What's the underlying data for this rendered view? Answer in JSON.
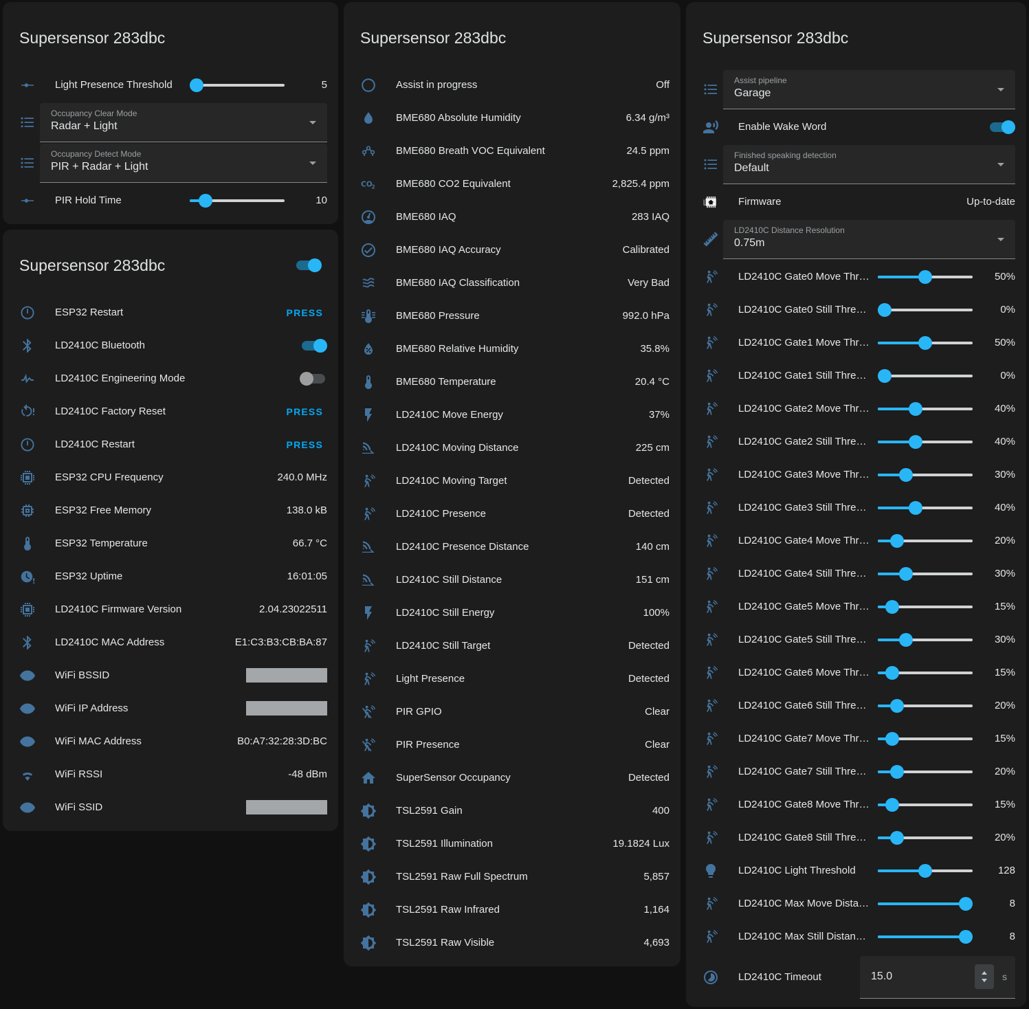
{
  "colors": {
    "page_bg": "#111112",
    "card_bg": "#1d1d1d",
    "icon_blue": "#44739e",
    "accent_blue": "#29b6f6",
    "press_blue": "#03a9f4",
    "inactive_track": "#d0d2d4",
    "redacted_gray": "#a4a7a9"
  },
  "columns": [
    {
      "cards": [
        {
          "title": "Supersensor 283dbc",
          "rows": [
            {
              "type": "slider",
              "icon": "tune",
              "label": "Light Presence Threshold",
              "value": "5",
              "fill": 4
            },
            {
              "type": "select",
              "icon": "list",
              "label": "Occupancy Clear Mode",
              "value": "Radar + Light"
            },
            {
              "type": "select",
              "icon": "list",
              "label": "Occupancy Detect Mode",
              "value": "PIR + Radar + Light"
            },
            {
              "type": "slider",
              "icon": "tune",
              "label": "PIR Hold Time",
              "value": "10",
              "fill": 17
            }
          ]
        },
        {
          "title": "Supersensor 283dbc",
          "header_toggle": {
            "on": true
          },
          "rows": [
            {
              "type": "press",
              "icon": "power",
              "label": "ESP32 Restart",
              "action": "PRESS"
            },
            {
              "type": "toggle",
              "icon": "bluetooth",
              "label": "LD2410C Bluetooth",
              "on": true
            },
            {
              "type": "toggle",
              "icon": "pulse",
              "label": "LD2410C Engineering Mode",
              "on": false
            },
            {
              "type": "press",
              "icon": "restart-alert",
              "label": "LD2410C Factory Reset",
              "action": "PRESS"
            },
            {
              "type": "press",
              "icon": "power",
              "label": "LD2410C Restart",
              "action": "PRESS"
            },
            {
              "type": "value",
              "icon": "chip",
              "label": "ESP32 CPU Frequency",
              "value": "240.0 MHz"
            },
            {
              "type": "value",
              "icon": "memory",
              "label": "ESP32 Free Memory",
              "value": "138.0 kB"
            },
            {
              "type": "value",
              "icon": "thermometer",
              "label": "ESP32 Temperature",
              "value": "66.7 °C"
            },
            {
              "type": "value",
              "icon": "clock-alert",
              "label": "ESP32 Uptime",
              "value": "16:01:05"
            },
            {
              "type": "value",
              "icon": "chip",
              "label": "LD2410C Firmware Version",
              "value": "2.04.23022511"
            },
            {
              "type": "value",
              "icon": "bluetooth",
              "label": "LD2410C MAC Address",
              "value": "E1:C3:B3:CB:BA:87"
            },
            {
              "type": "redacted",
              "icon": "eye",
              "label": "WiFi BSSID"
            },
            {
              "type": "redacted",
              "icon": "eye",
              "label": "WiFi IP Address"
            },
            {
              "type": "value",
              "icon": "eye",
              "label": "WiFi MAC Address",
              "value": "B0:A7:32:28:3D:BC"
            },
            {
              "type": "value",
              "icon": "wifi",
              "label": "WiFi RSSI",
              "value": "-48 dBm"
            },
            {
              "type": "redacted",
              "icon": "eye",
              "label": "WiFi SSID"
            }
          ]
        }
      ]
    },
    {
      "cards": [
        {
          "title": "Supersensor 283dbc",
          "rows": [
            {
              "type": "value",
              "icon": "circle-outline",
              "label": "Assist in progress",
              "value": "Off"
            },
            {
              "type": "value",
              "icon": "water",
              "label": "BME680 Absolute Humidity",
              "value": "6.34 g/m³"
            },
            {
              "type": "value",
              "icon": "molecule",
              "label": "BME680 Breath VOC Equivalent",
              "value": "24.5 ppm"
            },
            {
              "type": "value",
              "icon": "co2",
              "label": "BME680 CO2 Equivalent",
              "value": "2,825.4 ppm"
            },
            {
              "type": "value",
              "icon": "gauge",
              "label": "BME680 IAQ",
              "value": "283 IAQ"
            },
            {
              "type": "value",
              "icon": "check-circle",
              "label": "BME680 IAQ Accuracy",
              "value": "Calibrated"
            },
            {
              "type": "value",
              "icon": "air-filter",
              "label": "BME680 IAQ Classification",
              "value": "Very Bad"
            },
            {
              "type": "value",
              "icon": "thermometer-lines",
              "label": "BME680 Pressure",
              "value": "992.0 hPa"
            },
            {
              "type": "value",
              "icon": "water-percent",
              "label": "BME680 Relative Humidity",
              "value": "35.8%"
            },
            {
              "type": "value",
              "icon": "thermometer",
              "label": "BME680 Temperature",
              "value": "20.4 °C"
            },
            {
              "type": "value",
              "icon": "flash",
              "label": "LD2410C Move Energy",
              "value": "37%"
            },
            {
              "type": "value",
              "icon": "signal-distance",
              "label": "LD2410C Moving Distance",
              "value": "225 cm"
            },
            {
              "type": "value",
              "icon": "motion-sensor",
              "label": "LD2410C Moving Target",
              "value": "Detected"
            },
            {
              "type": "value",
              "icon": "motion-sensor",
              "label": "LD2410C Presence",
              "value": "Detected"
            },
            {
              "type": "value",
              "icon": "signal-distance",
              "label": "LD2410C Presence Distance",
              "value": "140 cm"
            },
            {
              "type": "value",
              "icon": "signal-distance",
              "label": "LD2410C Still Distance",
              "value": "151 cm"
            },
            {
              "type": "value",
              "icon": "flash",
              "label": "LD2410C Still Energy",
              "value": "100%"
            },
            {
              "type": "value",
              "icon": "motion-sensor",
              "label": "LD2410C Still Target",
              "value": "Detected"
            },
            {
              "type": "value",
              "icon": "motion-sensor",
              "label": "Light Presence",
              "value": "Detected"
            },
            {
              "type": "value",
              "icon": "motion-sensor-off",
              "label": "PIR GPIO",
              "value": "Clear"
            },
            {
              "type": "value",
              "icon": "motion-sensor-off",
              "label": "PIR Presence",
              "value": "Clear"
            },
            {
              "type": "value",
              "icon": "home",
              "label": "SuperSensor Occupancy",
              "value": "Detected"
            },
            {
              "type": "value",
              "icon": "brightness",
              "label": "TSL2591 Gain",
              "value": "400"
            },
            {
              "type": "value",
              "icon": "brightness",
              "label": "TSL2591 Illumination",
              "value": "19.1824 Lux"
            },
            {
              "type": "value",
              "icon": "brightness",
              "label": "TSL2591 Raw Full Spectrum",
              "value": "5,857"
            },
            {
              "type": "value",
              "icon": "brightness",
              "label": "TSL2591 Raw Infrared",
              "value": "1,164"
            },
            {
              "type": "value",
              "icon": "brightness",
              "label": "TSL2591 Raw Visible",
              "value": "4,693"
            }
          ]
        }
      ]
    },
    {
      "cards": [
        {
          "title": "Supersensor 283dbc",
          "rows": [
            {
              "type": "select",
              "icon": "list",
              "label": "Assist pipeline",
              "value": "Garage"
            },
            {
              "type": "toggle",
              "icon": "account-voice",
              "label": "Enable Wake Word",
              "on": true
            },
            {
              "type": "select",
              "icon": "list",
              "label": "Finished speaking detection",
              "value": "Default"
            },
            {
              "type": "value",
              "icon": "firmware",
              "label": "Firmware",
              "value": "Up-to-date"
            },
            {
              "type": "select",
              "icon": "ruler",
              "label": "LD2410C Distance Resolution",
              "value": "0.75m"
            },
            {
              "type": "slider",
              "icon": "motion-sensor",
              "label": "LD2410C Gate0 Move Thr…",
              "value": "50%",
              "fill": 50
            },
            {
              "type": "slider",
              "icon": "motion-sensor",
              "label": "LD2410C Gate0 Still Thres…",
              "value": "0%",
              "fill": 0
            },
            {
              "type": "slider",
              "icon": "motion-sensor",
              "label": "LD2410C Gate1 Move Thr…",
              "value": "50%",
              "fill": 50
            },
            {
              "type": "slider",
              "icon": "motion-sensor",
              "label": "LD2410C Gate1 Still Thres…",
              "value": "0%",
              "fill": 0
            },
            {
              "type": "slider",
              "icon": "motion-sensor",
              "label": "LD2410C Gate2 Move Thr…",
              "value": "40%",
              "fill": 40
            },
            {
              "type": "slider",
              "icon": "motion-sensor",
              "label": "LD2410C Gate2 Still Thres…",
              "value": "40%",
              "fill": 40
            },
            {
              "type": "slider",
              "icon": "motion-sensor",
              "label": "LD2410C Gate3 Move Thr…",
              "value": "30%",
              "fill": 30
            },
            {
              "type": "slider",
              "icon": "motion-sensor",
              "label": "LD2410C Gate3 Still Thres…",
              "value": "40%",
              "fill": 40
            },
            {
              "type": "slider",
              "icon": "motion-sensor",
              "label": "LD2410C Gate4 Move Thr…",
              "value": "20%",
              "fill": 20
            },
            {
              "type": "slider",
              "icon": "motion-sensor",
              "label": "LD2410C Gate4 Still Thres…",
              "value": "30%",
              "fill": 30
            },
            {
              "type": "slider",
              "icon": "motion-sensor",
              "label": "LD2410C Gate5 Move Thr…",
              "value": "15%",
              "fill": 15
            },
            {
              "type": "slider",
              "icon": "motion-sensor",
              "label": "LD2410C Gate5 Still Thres…",
              "value": "30%",
              "fill": 30
            },
            {
              "type": "slider",
              "icon": "motion-sensor",
              "label": "LD2410C Gate6 Move Thr…",
              "value": "15%",
              "fill": 15
            },
            {
              "type": "slider",
              "icon": "motion-sensor",
              "label": "LD2410C Gate6 Still Thres…",
              "value": "20%",
              "fill": 20
            },
            {
              "type": "slider",
              "icon": "motion-sensor",
              "label": "LD2410C Gate7 Move Thr…",
              "value": "15%",
              "fill": 15
            },
            {
              "type": "slider",
              "icon": "motion-sensor",
              "label": "LD2410C Gate7 Still Thres…",
              "value": "20%",
              "fill": 20
            },
            {
              "type": "slider",
              "icon": "motion-sensor",
              "label": "LD2410C Gate8 Move Thr…",
              "value": "15%",
              "fill": 15
            },
            {
              "type": "slider",
              "icon": "motion-sensor",
              "label": "LD2410C Gate8 Still Thres…",
              "value": "20%",
              "fill": 20
            },
            {
              "type": "slider",
              "icon": "lightbulb",
              "label": "LD2410C Light Threshold",
              "value": "128",
              "fill": 50
            },
            {
              "type": "slider",
              "icon": "motion-sensor",
              "label": "LD2410C Max Move Dista…",
              "value": "8",
              "fill": 100
            },
            {
              "type": "slider",
              "icon": "motion-sensor",
              "label": "LD2410C Max Still Distanc…",
              "value": "8",
              "fill": 100
            },
            {
              "type": "number",
              "icon": "timelapse",
              "label": "LD2410C Timeout",
              "value": "15.0",
              "unit": "s"
            }
          ]
        }
      ]
    }
  ]
}
